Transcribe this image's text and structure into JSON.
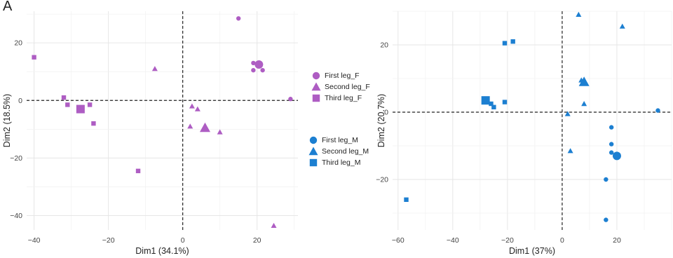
{
  "panel_label": "A",
  "colors": {
    "female": "#AE5DC3",
    "male": "#1C7FD1"
  },
  "legend": {
    "female": [
      {
        "label": "First leg_F",
        "shape": "circle"
      },
      {
        "label": "Second leg_F",
        "shape": "triangle"
      },
      {
        "label": "Third leg_F",
        "shape": "square"
      }
    ],
    "male": [
      {
        "label": "First leg_M",
        "shape": "circle"
      },
      {
        "label": "Second leg_M",
        "shape": "triangle"
      },
      {
        "label": "Third leg_M",
        "shape": "square"
      }
    ]
  },
  "chart_data": [
    {
      "type": "scatter",
      "xlabel": "Dim1 (34.1%)",
      "ylabel": "Dim2 (18.5%)",
      "xlim": [
        -42,
        31
      ],
      "ylim": [
        -45,
        31
      ],
      "xticks": [
        -40,
        -20,
        0,
        20
      ],
      "yticks": [
        -40,
        -20,
        0,
        20
      ],
      "xtick_labels": [
        "−40",
        "−20",
        "0",
        "20"
      ],
      "ytick_labels": [
        "−40",
        "−20",
        "0",
        "20"
      ],
      "grid": true,
      "reference_lines": {
        "x": 0,
        "y": 0,
        "style": "dashed"
      },
      "color_key": "female",
      "series": [
        {
          "name": "First leg_F",
          "shape": "circle",
          "points": [
            [
              15,
              28.5
            ],
            [
              19,
              13
            ],
            [
              19,
              10.5
            ],
            [
              21.5,
              10.5
            ],
            [
              29,
              0.5
            ]
          ],
          "centroid": [
            20.5,
            12.5
          ]
        },
        {
          "name": "Second leg_F",
          "shape": "triangle",
          "points": [
            [
              -7.5,
              11
            ],
            [
              2.5,
              -2
            ],
            [
              4,
              -3
            ],
            [
              2,
              -9
            ],
            [
              10,
              -11
            ],
            [
              24.5,
              -43.5
            ]
          ],
          "centroid": [
            6,
            -9.5
          ]
        },
        {
          "name": "Third leg_F",
          "shape": "square",
          "points": [
            [
              -40,
              15
            ],
            [
              -32,
              1
            ],
            [
              -31,
              -1.5
            ],
            [
              -25,
              -1.5
            ],
            [
              -24,
              -8
            ],
            [
              -12,
              -24.5
            ]
          ],
          "centroid": [
            -27.5,
            -3
          ]
        }
      ]
    },
    {
      "type": "scatter",
      "xlabel": "Dim1 (37%)",
      "ylabel": "Dim2 (20.7%)",
      "xlim": [
        -62,
        40
      ],
      "ylim": [
        -35,
        30
      ],
      "xticks": [
        -60,
        -40,
        -20,
        0,
        20
      ],
      "yticks": [
        -20,
        0,
        20
      ],
      "xtick_labels": [
        "−60",
        "−40",
        "−20",
        "0",
        "20"
      ],
      "ytick_labels": [
        "−20",
        "0",
        "20"
      ],
      "grid": true,
      "reference_lines": {
        "x": 0,
        "y": 0,
        "style": "dashed"
      },
      "color_key": "male",
      "series": [
        {
          "name": "First leg_M",
          "shape": "circle",
          "points": [
            [
              35,
              0.5
            ],
            [
              18,
              -4.5
            ],
            [
              18,
              -9.5
            ],
            [
              18,
              -12
            ],
            [
              16,
              -20
            ],
            [
              16,
              -32
            ]
          ],
          "centroid": [
            20,
            -13
          ]
        },
        {
          "name": "Second leg_M",
          "shape": "triangle",
          "points": [
            [
              6,
              29
            ],
            [
              22,
              25.5
            ],
            [
              7,
              9.5
            ],
            [
              8,
              9.5
            ],
            [
              8,
              2.5
            ],
            [
              2,
              -0.5
            ],
            [
              3,
              -11.5
            ]
          ],
          "centroid": [
            8,
            9
          ]
        },
        {
          "name": "Third leg_M",
          "shape": "square",
          "points": [
            [
              -57,
              -26
            ],
            [
              -21,
              20.5
            ],
            [
              -18,
              21
            ],
            [
              -26,
              2.5
            ],
            [
              -25,
              1.5
            ],
            [
              -21,
              3
            ]
          ],
          "centroid": [
            -28,
            3.5
          ]
        }
      ]
    }
  ]
}
